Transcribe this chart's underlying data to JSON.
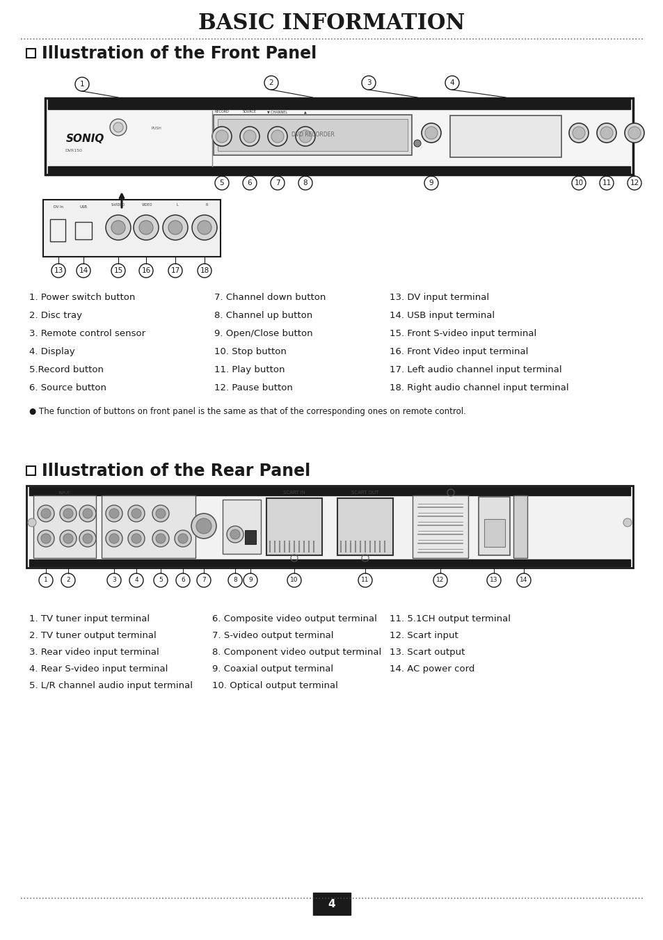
{
  "title": "BASIC INFORMATION",
  "section1": "Illustration of the Front Panel",
  "section2": "Illustration of the Rear Panel",
  "front_labels_col1": [
    "1. Power switch button",
    "2. Disc tray",
    "3. Remote control sensor",
    "4. Display",
    "5.Record button",
    "6. Source button"
  ],
  "front_labels_col2": [
    "7. Channel down button",
    "8. Channel up button",
    "9. Open/Close button",
    "10. Stop button",
    "11. Play button",
    "12. Pause button"
  ],
  "front_labels_col3": [
    "13. DV input terminal",
    "14. USB input terminal",
    "15. Front S-video input terminal",
    "16. Front Video input terminal",
    "17. Left audio channel input terminal",
    "18. Right audio channel input terminal"
  ],
  "front_note": "● The function of buttons on front panel is the same as that of the corresponding ones on remote control.",
  "rear_labels_col1": [
    "1. TV tuner input terminal",
    "2. TV tuner output terminal",
    "3. Rear video input terminal",
    "4. Rear S-video input terminal",
    "5. L/R channel audio input terminal"
  ],
  "rear_labels_col2": [
    "6. Composite video output terminal",
    "7. S-video output terminal",
    "8. Component video output terminal",
    "9. Coaxial output terminal",
    "10. Optical output terminal"
  ],
  "rear_labels_col3": [
    "11. 5.1CH output terminal",
    "12. Scart input",
    "13. Scart output",
    "14. AC power cord"
  ],
  "page_number": "4",
  "bg_color": "#ffffff",
  "text_color": "#1a1a1a",
  "dot_line_color": "#555555"
}
